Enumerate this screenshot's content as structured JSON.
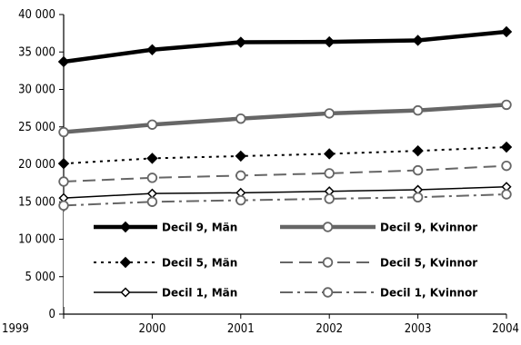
{
  "chart_data": {
    "type": "line",
    "x": [
      1999,
      2000,
      2001,
      2002,
      2003,
      2004
    ],
    "xlim": [
      1999,
      2004
    ],
    "ylim": [
      0,
      40000
    ],
    "y_ticks": [
      0,
      5000,
      10000,
      15000,
      20000,
      25000,
      30000,
      35000,
      40000
    ],
    "y_tick_labels": [
      "0",
      "5 000",
      "10 000",
      "15 000",
      "20 000",
      "25 000",
      "30 000",
      "35 000",
      "40 000"
    ],
    "x_tick_labels": [
      "1999",
      "2000",
      "2001",
      "2002",
      "2003",
      "2004"
    ],
    "grid": false,
    "legend_position": "inside-bottom",
    "series": [
      {
        "name": "Decil 9, Män",
        "values": [
          33700,
          35300,
          36300,
          36350,
          36550,
          37700
        ],
        "color": "#000000",
        "line_style": "solid",
        "line_weight": "heavy",
        "marker": "filled-diamond"
      },
      {
        "name": "Decil 9, Kvinnor",
        "values": [
          24300,
          25300,
          26100,
          26800,
          27200,
          27950
        ],
        "color": "#666666",
        "line_style": "solid",
        "line_weight": "heavy",
        "marker": "open-circle"
      },
      {
        "name": "Decil 5, Män",
        "values": [
          20100,
          20800,
          21100,
          21400,
          21800,
          22300
        ],
        "color": "#000000",
        "line_style": "dotted",
        "line_weight": "normal",
        "marker": "filled-diamond"
      },
      {
        "name": "Decil 5, Kvinnor",
        "values": [
          17700,
          18200,
          18500,
          18800,
          19200,
          19800
        ],
        "color": "#666666",
        "line_style": "dashed",
        "line_weight": "normal",
        "marker": "open-circle"
      },
      {
        "name": "Decil 1, Män",
        "values": [
          15500,
          16100,
          16200,
          16400,
          16600,
          17000
        ],
        "color": "#000000",
        "line_style": "solid",
        "line_weight": "thin",
        "marker": "open-diamond"
      },
      {
        "name": "Decil 1, Kvinnor",
        "values": [
          14500,
          15000,
          15200,
          15400,
          15600,
          16000
        ],
        "color": "#666666",
        "line_style": "dash-dot",
        "line_weight": "normal",
        "marker": "open-circle"
      }
    ]
  }
}
